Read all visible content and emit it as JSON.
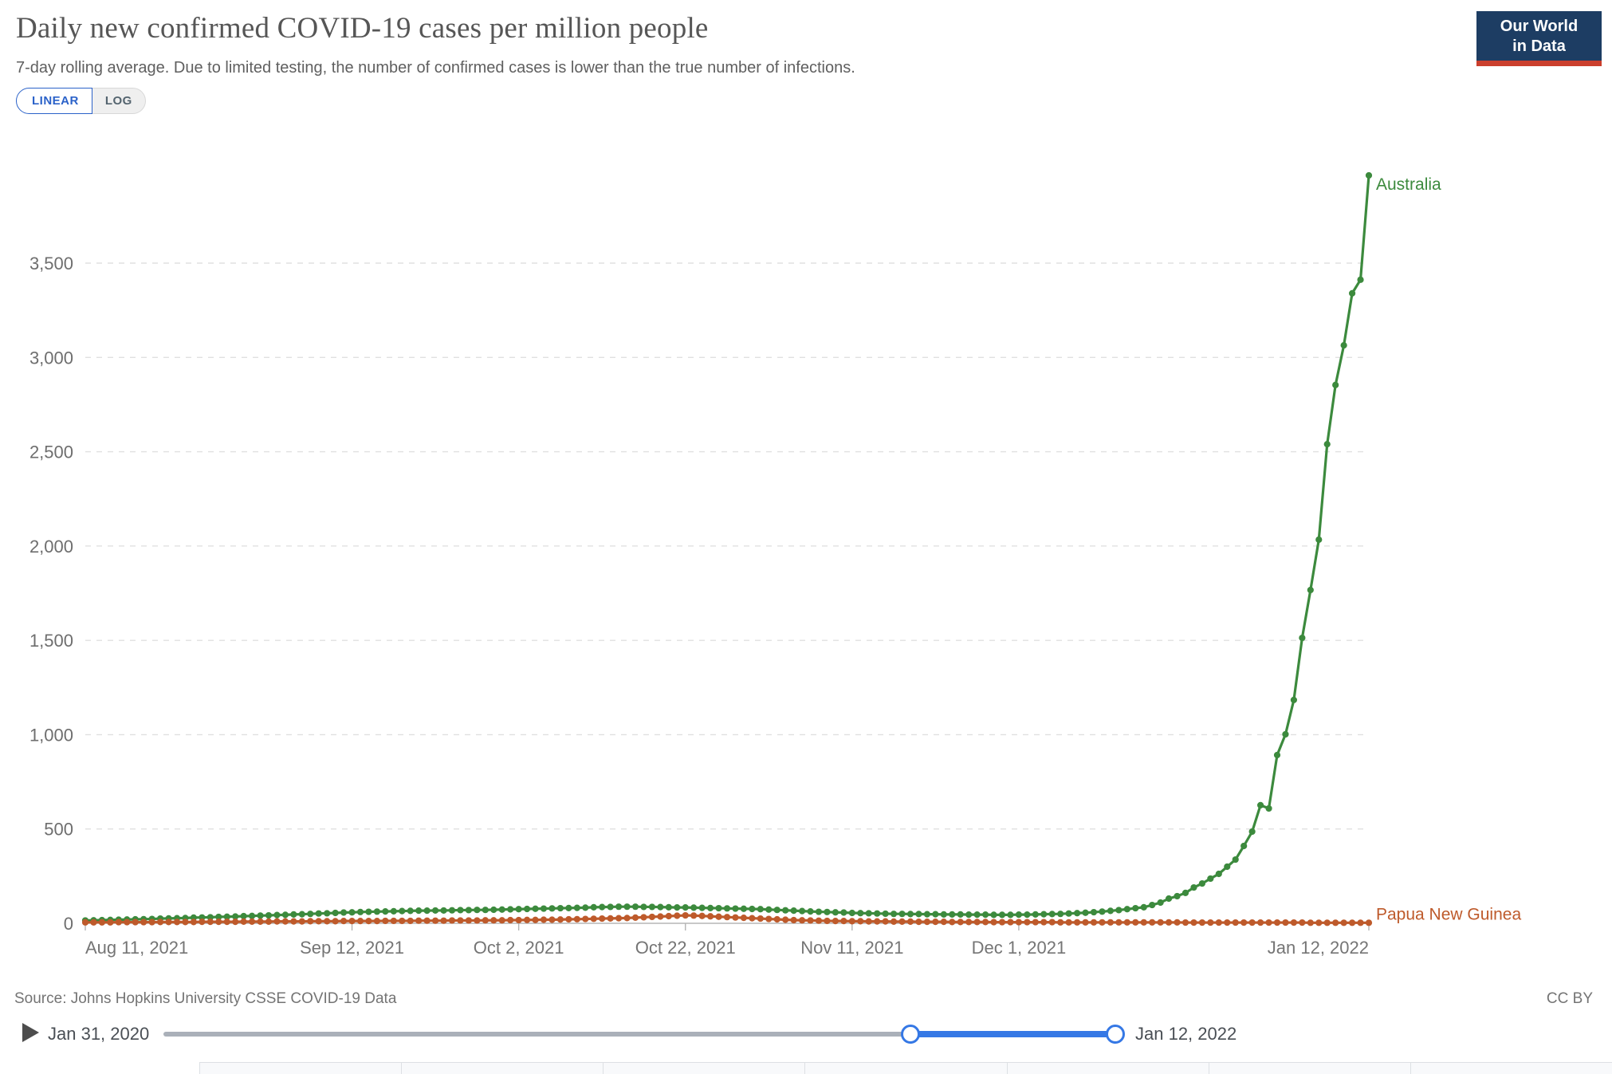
{
  "header": {
    "title": "Daily new confirmed COVID-19 cases per million people",
    "subtitle": "7-day rolling average. Due to limited testing, the number of confirmed cases is lower than the true number of infections.",
    "logo_line1": "Our World",
    "logo_line2": "in Data"
  },
  "controls": {
    "linear_label": "LINEAR",
    "log_label": "LOG",
    "active": "LINEAR"
  },
  "colors": {
    "accent_blue": "#2B62C9",
    "slider_blue": "#3578E5",
    "logo_navy": "#1D3D63",
    "logo_red": "#CB3F2D",
    "australia_green": "#3C8A3D",
    "papua_new_guinea_orange": "#BE5A2B"
  },
  "chart_data": {
    "type": "line",
    "title": "Daily new confirmed COVID-19 cases per million people",
    "xlabel": "",
    "ylabel": "",
    "grid": true,
    "ylim": [
      0,
      3500
    ],
    "y_ticks": [
      0,
      500,
      1000,
      1500,
      2000,
      2500,
      3000,
      3500
    ],
    "x_start": "Aug 11, 2021",
    "x_end": "Jan 12, 2022",
    "x_ticks": [
      {
        "label": "Aug 11, 2021",
        "day": 0,
        "align": "start"
      },
      {
        "label": "Sep 12, 2021",
        "day": 32,
        "align": "middle"
      },
      {
        "label": "Oct 2, 2021",
        "day": 52,
        "align": "middle"
      },
      {
        "label": "Oct 22, 2021",
        "day": 72,
        "align": "middle"
      },
      {
        "label": "Nov 11, 2021",
        "day": 92,
        "align": "middle"
      },
      {
        "label": "Dec 1, 2021",
        "day": 112,
        "align": "middle"
      },
      {
        "label": "Jan 12, 2022",
        "day": 154,
        "align": "end"
      }
    ],
    "legend_position": "line-end-labels",
    "series": [
      {
        "name": "Australia",
        "color": "#3C8A3D",
        "label_dy": 18,
        "values": [
          15,
          16,
          17,
          18,
          19,
          20,
          21,
          22,
          23,
          25,
          26,
          27,
          28,
          30,
          31,
          32,
          34,
          35,
          36,
          38,
          39,
          41,
          42,
          44,
          45,
          47,
          48,
          50,
          52,
          53,
          55,
          57,
          58,
          60,
          61,
          62,
          63,
          64,
          65,
          66,
          67,
          67,
          68,
          68,
          69,
          70,
          70,
          71,
          71,
          72,
          73,
          74,
          75,
          76,
          77,
          78,
          79,
          80,
          81,
          82,
          83,
          85,
          86,
          87,
          88,
          88,
          88,
          87,
          87,
          86,
          85,
          84,
          84,
          83,
          82,
          81,
          80,
          79,
          78,
          77,
          76,
          75,
          73,
          71,
          69,
          67,
          65,
          63,
          61,
          60,
          58,
          57,
          55,
          54,
          53,
          52,
          51,
          50,
          50,
          49,
          49,
          48,
          48,
          47,
          47,
          47,
          46,
          46,
          46,
          45,
          45,
          45,
          46,
          46,
          47,
          48,
          49,
          50,
          52,
          54,
          56,
          59,
          62,
          66,
          70,
          75,
          80,
          85,
          97,
          110,
          131,
          144,
          161,
          190,
          211,
          237,
          262,
          300,
          338,
          410,
          486,
          626,
          609,
          892,
          1002,
          1184,
          1513,
          1767,
          2034,
          2540,
          2854,
          3064,
          3340,
          3412,
          3965
        ]
      },
      {
        "name": "Papua New Guinea",
        "color": "#BE5A2B",
        "label_dy": -4,
        "values": [
          5,
          5,
          5,
          5,
          6,
          6,
          6,
          6,
          6,
          7,
          7,
          7,
          7,
          7,
          8,
          8,
          8,
          8,
          8,
          9,
          9,
          9,
          9,
          10,
          10,
          10,
          10,
          11,
          11,
          11,
          11,
          12,
          12,
          12,
          12,
          12,
          13,
          13,
          13,
          13,
          14,
          14,
          14,
          14,
          15,
          15,
          15,
          15,
          16,
          16,
          16,
          17,
          17,
          18,
          18,
          19,
          19,
          20,
          21,
          22,
          23,
          24,
          25,
          26,
          27,
          28,
          30,
          32,
          34,
          36,
          38,
          40,
          42,
          41,
          39,
          37,
          35,
          33,
          31,
          29,
          27,
          25,
          23,
          21,
          19,
          17,
          16,
          15,
          14,
          13,
          12,
          12,
          11,
          11,
          10,
          10,
          10,
          9,
          9,
          9,
          8,
          8,
          8,
          8,
          7,
          7,
          7,
          7,
          7,
          6,
          6,
          6,
          6,
          6,
          6,
          6,
          6,
          5,
          5,
          5,
          5,
          5,
          5,
          5,
          5,
          5,
          5,
          5,
          5,
          5,
          5,
          5,
          4,
          4,
          4,
          4,
          4,
          4,
          4,
          4,
          4,
          4,
          4,
          4,
          4,
          4,
          4,
          3,
          3,
          3,
          3,
          3,
          3,
          3,
          3
        ]
      }
    ]
  },
  "footer": {
    "source": "Source: Johns Hopkins University CSSE COVID-19 Data",
    "license": "CC BY"
  },
  "timeline": {
    "start_label": "Jan 31, 2020",
    "end_label": "Jan 12, 2022",
    "selection_start_frac": 0.784,
    "selection_end_frac": 1.0
  }
}
